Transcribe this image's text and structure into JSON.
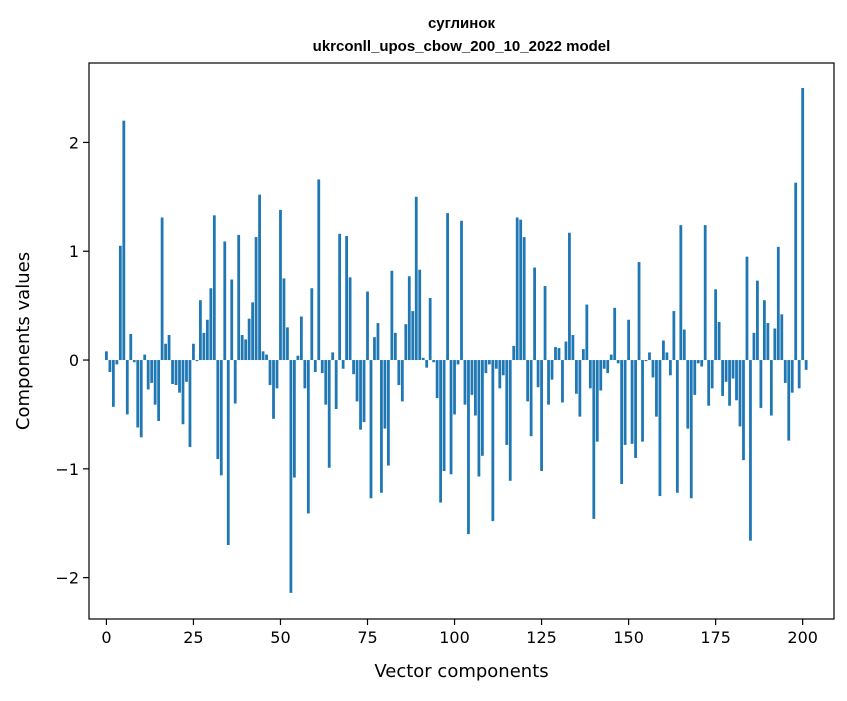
{
  "chart_data": {
    "type": "bar",
    "title_line1": "суглинок",
    "title_line2": "ukrconll_upos_cbow_200_10_2022 model",
    "xlabel": "Vector components",
    "ylabel": "Components values",
    "xlim": [
      -5,
      209
    ],
    "ylim": [
      -2.38,
      2.73
    ],
    "x_ticks": [
      0,
      25,
      50,
      75,
      100,
      125,
      150,
      175,
      200
    ],
    "x_tick_labels": [
      "0",
      "25",
      "50",
      "75",
      "100",
      "125",
      "150",
      "175",
      "200"
    ],
    "y_ticks": [
      -2,
      -1,
      0,
      1,
      2
    ],
    "y_tick_labels": [
      "−2",
      "−1",
      "0",
      "1",
      "2"
    ],
    "bar_color": "#1f77b4",
    "grid": false,
    "legend": "none",
    "values": [
      0.08,
      -0.11,
      -0.43,
      -0.04,
      1.05,
      2.2,
      -0.5,
      0.24,
      -0.02,
      -0.62,
      -0.71,
      0.05,
      -0.27,
      -0.21,
      -0.41,
      -0.56,
      1.31,
      0.15,
      0.23,
      -0.22,
      -0.23,
      -0.3,
      -0.59,
      -0.2,
      -0.8,
      0.15,
      -0.01,
      0.55,
      0.25,
      0.37,
      0.66,
      1.33,
      -0.91,
      -1.06,
      1.09,
      -1.7,
      0.74,
      -0.4,
      1.15,
      0.23,
      0.19,
      0.38,
      0.53,
      1.13,
      1.52,
      0.08,
      0.05,
      -0.23,
      -0.54,
      -0.26,
      1.38,
      0.75,
      0.3,
      -2.14,
      -1.08,
      0.04,
      0.4,
      -0.26,
      -1.41,
      0.66,
      -0.11,
      1.66,
      -0.12,
      -0.41,
      -0.99,
      0.07,
      -0.45,
      1.16,
      -0.08,
      1.14,
      0.76,
      -0.13,
      -0.38,
      -0.64,
      -0.57,
      0.63,
      -1.27,
      0.21,
      0.34,
      -1.22,
      -0.63,
      -0.97,
      0.82,
      0.25,
      -0.23,
      -0.38,
      0.33,
      0.77,
      0.45,
      1.5,
      0.83,
      0.02,
      -0.07,
      0.57,
      -0.02,
      -0.35,
      -1.31,
      -1.02,
      1.35,
      -1.05,
      -0.5,
      -0.04,
      1.28,
      -0.41,
      -1.6,
      -0.32,
      -0.51,
      -1.07,
      -0.88,
      -0.12,
      -0.04,
      -1.48,
      -0.08,
      -0.26,
      -0.14,
      -0.78,
      -1.11,
      0.13,
      1.31,
      1.29,
      1.13,
      -0.38,
      -0.7,
      0.85,
      -0.25,
      -1.02,
      0.68,
      -0.41,
      -0.18,
      0.12,
      0.11,
      -0.39,
      0.17,
      1.17,
      0.23,
      -0.31,
      -0.52,
      0.1,
      0.51,
      -0.26,
      -1.46,
      -0.75,
      -0.28,
      -0.08,
      -0.12,
      0.05,
      0.48,
      -0.03,
      -1.14,
      -0.78,
      0.37,
      -0.77,
      -0.9,
      0.9,
      -0.75,
      -0.01,
      0.07,
      -0.16,
      -0.52,
      -1.25,
      0.18,
      0.07,
      -0.14,
      0.45,
      -1.22,
      1.24,
      0.28,
      -0.63,
      -1.27,
      -0.32,
      -0.03,
      -0.06,
      1.24,
      -0.42,
      -0.26,
      0.65,
      0.35,
      -0.33,
      -0.2,
      -0.42,
      -0.17,
      -0.37,
      -0.61,
      -0.92,
      0.95,
      -1.66,
      0.25,
      0.73,
      -0.44,
      0.55,
      0.34,
      -0.51,
      0.29,
      1.04,
      0.42,
      -0.21,
      -0.74,
      -0.3,
      1.63,
      -0.26,
      2.5,
      -0.09
    ]
  }
}
